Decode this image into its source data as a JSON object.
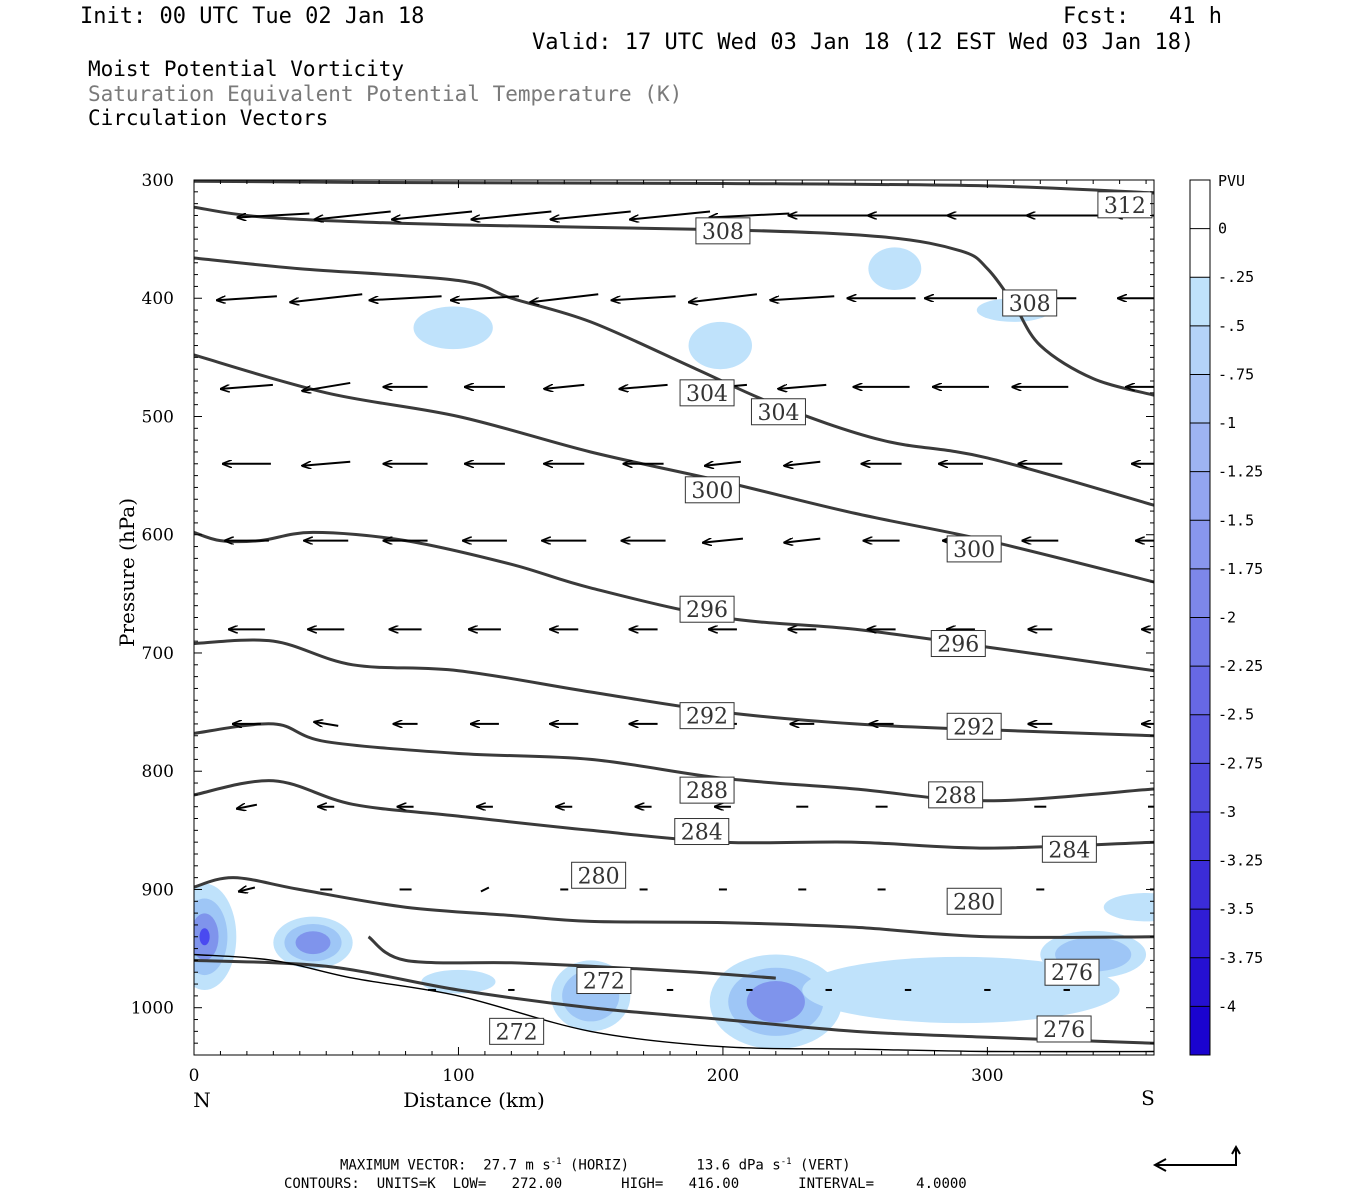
{
  "header": {
    "init": "Init: 00 UTC Tue 02 Jan 18",
    "fcst": "Fcst:   41 h",
    "valid": "Valid: 17 UTC Wed 03 Jan 18 (12 EST Wed 03 Jan 18)"
  },
  "titles": [
    "Moist Potential Vorticity",
    "Saturation Equivalent Potential Temperature (K)",
    "Circulation Vectors"
  ],
  "footer": {
    "max_vector_a": "MAXIMUM VECTOR:  27.7 m s",
    "max_vector_b": "(HORIZ)        13.6 dPa s",
    "max_vector_c": "(VERT)",
    "sup": "-1",
    "contours": "CONTOURS:  UNITS=K  LOW=   272.00       HIGH=   416.00       INTERVAL=     4.0000"
  },
  "colors": {
    "contour": "#3a3a3a",
    "vector": "#000000",
    "pv_light": "#bfe2fb",
    "pv_strong": "#2a2af0"
  },
  "chart_data": {
    "type": "contour",
    "xlabel": "Distance (km)",
    "ylabel": "Pressure (hPa)",
    "xlim": [
      0,
      363
    ],
    "ylim": [
      1040,
      300
    ],
    "x_ticks": [
      0,
      100,
      200,
      300
    ],
    "y_ticks": [
      300,
      400,
      500,
      600,
      700,
      800,
      900,
      1000
    ],
    "x_end_labels": [
      "N",
      "S"
    ],
    "colorbar": {
      "title": "PVU",
      "labels": [
        "0",
        "-.25",
        "-.5",
        "-.75",
        "-1",
        "-1.25",
        "-1.5",
        "-1.75",
        "-2",
        "-2.25",
        "-2.5",
        "-2.75",
        "-3",
        "-3.25",
        "-3.5",
        "-3.75",
        "-4"
      ],
      "colors": [
        "#ffffff",
        "#ffffff",
        "#bfe2fb",
        "#b4d3f8",
        "#a9c4f5",
        "#9eb4f3",
        "#93a5f0",
        "#8896ed",
        "#7d87ea",
        "#7278e7",
        "#6768e4",
        "#5c59e1",
        "#514ade",
        "#463bdb",
        "#3b2cd8",
        "#301dd5",
        "#2510d2",
        "#1a03cf"
      ]
    },
    "contours": [
      {
        "label": "312",
        "points": [
          [
            0,
            301
          ],
          [
            60,
            302
          ],
          [
            200,
            303
          ],
          [
            300,
            305
          ],
          [
            363,
            311
          ]
        ],
        "label_at": [
          [
            352,
            321
          ]
        ]
      },
      {
        "label": "308",
        "points": [
          [
            0,
            323
          ],
          [
            30,
            332
          ],
          [
            100,
            338
          ],
          [
            200,
            342
          ],
          [
            260,
            348
          ],
          [
            290,
            360
          ],
          [
            300,
            375
          ],
          [
            310,
            405
          ],
          [
            320,
            440
          ],
          [
            340,
            468
          ],
          [
            363,
            482
          ]
        ],
        "label_at": [
          [
            200,
            343
          ],
          [
            316,
            404
          ]
        ]
      },
      {
        "label": "304",
        "points": [
          [
            0,
            366
          ],
          [
            40,
            375
          ],
          [
            100,
            385
          ],
          [
            120,
            400
          ],
          [
            150,
            420
          ],
          [
            190,
            460
          ],
          [
            220,
            490
          ],
          [
            260,
            520
          ],
          [
            300,
            535
          ],
          [
            363,
            575
          ]
        ],
        "label_at": [
          [
            194,
            480
          ],
          [
            221,
            496
          ]
        ]
      },
      {
        "label": "300",
        "points": [
          [
            0,
            448
          ],
          [
            50,
            480
          ],
          [
            100,
            500
          ],
          [
            150,
            530
          ],
          [
            200,
            555
          ],
          [
            250,
            582
          ],
          [
            300,
            605
          ],
          [
            363,
            640
          ]
        ],
        "label_at": [
          [
            196,
            562
          ],
          [
            295,
            612
          ]
        ]
      },
      {
        "label": "296",
        "points": [
          [
            0,
            598
          ],
          [
            10,
            605
          ],
          [
            25,
            605
          ],
          [
            45,
            598
          ],
          [
            80,
            605
          ],
          [
            120,
            625
          ],
          [
            150,
            645
          ],
          [
            200,
            670
          ],
          [
            250,
            680
          ],
          [
            300,
            695
          ],
          [
            363,
            715
          ]
        ],
        "label_at": [
          [
            194,
            663
          ],
          [
            289,
            692
          ]
        ]
      },
      {
        "label": "292",
        "points": [
          [
            0,
            692
          ],
          [
            30,
            690
          ],
          [
            60,
            710
          ],
          [
            100,
            715
          ],
          [
            150,
            733
          ],
          [
            200,
            750
          ],
          [
            250,
            760
          ],
          [
            300,
            765
          ],
          [
            363,
            770
          ]
        ],
        "label_at": [
          [
            194,
            753
          ],
          [
            295,
            762
          ]
        ]
      },
      {
        "label": "288",
        "points": [
          [
            0,
            768
          ],
          [
            30,
            760
          ],
          [
            50,
            775
          ],
          [
            100,
            785
          ],
          [
            150,
            790
          ],
          [
            200,
            806
          ],
          [
            250,
            815
          ],
          [
            300,
            825
          ],
          [
            363,
            815
          ]
        ],
        "label_at": [
          [
            194,
            816
          ],
          [
            288,
            820
          ]
        ]
      },
      {
        "label": "284",
        "points": [
          [
            0,
            820
          ],
          [
            30,
            808
          ],
          [
            60,
            828
          ],
          [
            100,
            838
          ],
          [
            150,
            850
          ],
          [
            200,
            860
          ],
          [
            250,
            860
          ],
          [
            300,
            865
          ],
          [
            363,
            860
          ]
        ],
        "label_at": [
          [
            192,
            851
          ],
          [
            331,
            866
          ]
        ]
      },
      {
        "label": "280",
        "points": [
          [
            0,
            898
          ],
          [
            15,
            890
          ],
          [
            40,
            900
          ],
          [
            80,
            915
          ],
          [
            120,
            922
          ],
          [
            150,
            927
          ],
          [
            200,
            928
          ],
          [
            250,
            932
          ],
          [
            300,
            940
          ],
          [
            363,
            940
          ]
        ],
        "label_at": [
          [
            153,
            888
          ],
          [
            295,
            910
          ]
        ]
      },
      {
        "label": "276",
        "points": [
          [
            0,
            960
          ],
          [
            50,
            965
          ],
          [
            100,
            985
          ],
          [
            150,
            1000
          ],
          [
            200,
            1010
          ],
          [
            250,
            1020
          ],
          [
            300,
            1025
          ],
          [
            363,
            1030
          ]
        ],
        "label_at": [
          [
            332,
            970
          ],
          [
            329,
            1018
          ]
        ]
      },
      {
        "label": "272",
        "points": [
          [
            66,
            940
          ],
          [
            80,
            960
          ],
          [
            120,
            962
          ],
          [
            150,
            965
          ],
          [
            190,
            970
          ],
          [
            220,
            975
          ]
        ],
        "label_at": [
          [
            155,
            977
          ],
          [
            122,
            1020
          ]
        ]
      }
    ],
    "pv_patches": [
      {
        "cx": 4,
        "cy": 940,
        "rx": 12,
        "ry": 45,
        "level": 3
      },
      {
        "cx": 45,
        "cy": 945,
        "rx": 15,
        "ry": 22,
        "level": 2
      },
      {
        "cx": 100,
        "cy": 978,
        "rx": 14,
        "ry": 10,
        "level": 0
      },
      {
        "cx": 150,
        "cy": 990,
        "rx": 15,
        "ry": 30,
        "level": 1
      },
      {
        "cx": 220,
        "cy": 995,
        "rx": 25,
        "ry": 40,
        "level": 2
      },
      {
        "cx": 290,
        "cy": 985,
        "rx": 60,
        "ry": 28,
        "level": 0
      },
      {
        "cx": 340,
        "cy": 955,
        "rx": 20,
        "ry": 20,
        "level": 1
      },
      {
        "cx": 98,
        "cy": 425,
        "rx": 15,
        "ry": 18,
        "level": 0
      },
      {
        "cx": 199,
        "cy": 440,
        "rx": 12,
        "ry": 20,
        "level": 0
      },
      {
        "cx": 265,
        "cy": 375,
        "rx": 10,
        "ry": 18,
        "level": 0
      },
      {
        "cx": 310,
        "cy": 410,
        "rx": 14,
        "ry": 10,
        "level": 0
      },
      {
        "cx": 360,
        "cy": 915,
        "rx": 16,
        "ry": 12,
        "level": 0
      }
    ],
    "vectors": [
      {
        "p": 330,
        "x": [
          30,
          60,
          90,
          120,
          150,
          180,
          210,
          240,
          270,
          300,
          330,
          363
        ],
        "u": [
          -0.9,
          -0.95,
          -1.0,
          -1.0,
          -1.0,
          -1.0,
          -1.0,
          -1.0,
          -1.0,
          -1.0,
          -1.0,
          -1.0
        ],
        "v": [
          -0.05,
          -0.1,
          -0.1,
          -0.1,
          -0.1,
          -0.1,
          -0.05,
          0,
          0,
          0,
          0,
          0
        ]
      },
      {
        "p": 400,
        "x": [
          20,
          50,
          80,
          110,
          140,
          170,
          200,
          230,
          260,
          290,
          320,
          363
        ],
        "u": [
          -0.75,
          -0.9,
          -0.9,
          -0.85,
          -0.85,
          -0.8,
          -0.85,
          -0.8,
          -0.85,
          -0.9,
          -0.9,
          -0.9
        ],
        "v": [
          -0.05,
          -0.1,
          -0.05,
          -0.05,
          -0.1,
          -0.05,
          -0.1,
          -0.05,
          0,
          0,
          0,
          0
        ]
      },
      {
        "p": 475,
        "x": [
          20,
          50,
          80,
          110,
          140,
          170,
          200,
          230,
          260,
          290,
          320,
          363
        ],
        "u": [
          -0.65,
          -0.6,
          -0.55,
          -0.5,
          -0.5,
          -0.6,
          -0.6,
          -0.6,
          -0.7,
          -0.7,
          -0.7,
          -0.7
        ],
        "v": [
          -0.05,
          -0.1,
          0,
          0,
          -0.05,
          -0.05,
          -0.05,
          -0.05,
          0,
          0,
          0,
          0
        ]
      },
      {
        "p": 540,
        "x": [
          20,
          50,
          80,
          110,
          140,
          170,
          200,
          230,
          260,
          290,
          320,
          363
        ],
        "u": [
          -0.6,
          -0.6,
          -0.55,
          -0.5,
          -0.5,
          -0.5,
          -0.45,
          -0.45,
          -0.5,
          -0.55,
          -0.55,
          -0.55
        ],
        "v": [
          0,
          -0.05,
          0,
          0,
          0,
          0,
          -0.05,
          -0.05,
          0,
          0,
          0,
          0
        ]
      },
      {
        "p": 605,
        "x": [
          20,
          50,
          80,
          110,
          140,
          170,
          200,
          230,
          260,
          290,
          320,
          363
        ],
        "u": [
          -0.55,
          -0.55,
          -0.55,
          -0.55,
          -0.55,
          -0.55,
          -0.5,
          -0.45,
          -0.45,
          -0.45,
          -0.45,
          -0.45
        ],
        "v": [
          0,
          0,
          0,
          0,
          0,
          0,
          -0.05,
          -0.05,
          0,
          0,
          0,
          0
        ]
      },
      {
        "p": 680,
        "x": [
          20,
          50,
          80,
          110,
          140,
          170,
          200,
          230,
          260,
          290,
          320,
          363
        ],
        "u": [
          -0.45,
          -0.45,
          -0.4,
          -0.4,
          -0.35,
          -0.35,
          -0.35,
          -0.35,
          -0.35,
          -0.35,
          -0.3,
          -0.3
        ],
        "v": [
          0,
          0,
          0,
          0,
          0,
          0,
          0,
          0,
          0,
          0,
          0,
          0
        ]
      },
      {
        "p": 760,
        "x": [
          20,
          50,
          80,
          110,
          140,
          170,
          200,
          230,
          260,
          290,
          320,
          363
        ],
        "u": [
          -0.35,
          -0.3,
          -0.3,
          -0.35,
          -0.35,
          -0.35,
          -0.35,
          -0.3,
          -0.3,
          -0.3,
          -0.3,
          -0.3
        ],
        "v": [
          0,
          0.05,
          0,
          0,
          0,
          0,
          0,
          0,
          0,
          0,
          0,
          0
        ]
      },
      {
        "p": 830,
        "x": [
          20,
          50,
          80,
          110,
          140,
          170,
          200,
          230,
          260,
          290,
          320,
          363
        ],
        "u": [
          -0.25,
          -0.2,
          -0.2,
          -0.2,
          -0.2,
          -0.2,
          -0.2,
          -0.15,
          -0.15,
          -0.15,
          -0.15,
          -0.15
        ],
        "v": [
          -0.05,
          0,
          0,
          0,
          0,
          0,
          0,
          0,
          0,
          0,
          0,
          0
        ]
      },
      {
        "p": 900,
        "x": [
          20,
          50,
          80,
          110,
          140,
          170,
          200,
          230,
          260,
          290,
          320,
          363
        ],
        "u": [
          -0.2,
          -0.15,
          -0.15,
          -0.1,
          -0.1,
          -0.1,
          -0.1,
          -0.1,
          -0.1,
          -0.1,
          -0.1,
          -0.1
        ],
        "v": [
          -0.05,
          0,
          0,
          -0.05,
          0,
          0,
          0,
          0,
          0,
          0,
          0,
          0
        ]
      },
      {
        "p": 985,
        "x": [
          90,
          120,
          150,
          180,
          210,
          240,
          270,
          300,
          330
        ],
        "u": [
          -0.1,
          -0.08,
          -0.08,
          -0.08,
          -0.08,
          -0.08,
          -0.08,
          -0.08,
          -0.08
        ],
        "v": [
          0,
          0,
          0,
          0,
          0,
          0,
          0,
          0,
          0
        ]
      }
    ],
    "terrain": [
      [
        0,
        955
      ],
      [
        30,
        960
      ],
      [
        60,
        975
      ],
      [
        100,
        990
      ],
      [
        150,
        1020
      ],
      [
        200,
        1033
      ],
      [
        250,
        1035
      ],
      [
        300,
        1037
      ],
      [
        363,
        1037
      ]
    ]
  }
}
